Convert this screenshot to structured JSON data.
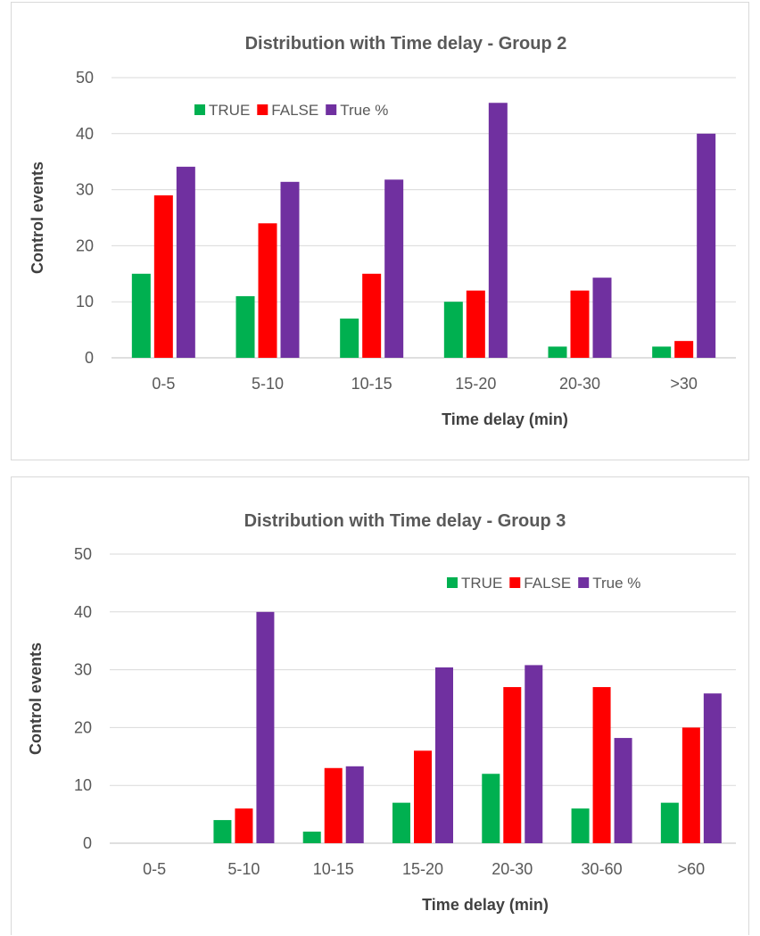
{
  "chart_data": [
    {
      "type": "bar",
      "title": "Distribution with Time delay - Group 2",
      "xlabel": "Time delay (min)",
      "ylabel": "Control events",
      "ylim": [
        0,
        50
      ],
      "yticks": [
        0,
        10,
        20,
        30,
        40,
        50
      ],
      "grid": true,
      "legend_position": "top-left",
      "categories": [
        "0-5",
        "5-10",
        "10-15",
        "15-20",
        "20-30",
        ">30"
      ],
      "series": [
        {
          "name": "TRUE",
          "color": "#00b050",
          "values": [
            15,
            11,
            7,
            10,
            2,
            2
          ]
        },
        {
          "name": "FALSE",
          "color": "#ff0000",
          "values": [
            29,
            24,
            15,
            12,
            12,
            3
          ]
        },
        {
          "name": "True %",
          "color": "#7030a0",
          "values": [
            34.1,
            31.4,
            31.8,
            45.5,
            14.3,
            40.0
          ]
        }
      ]
    },
    {
      "type": "bar",
      "title": "Distribution with Time delay - Group 3",
      "xlabel": "Time delay (min)",
      "ylabel": "Control events",
      "ylim": [
        0,
        50
      ],
      "yticks": [
        0,
        10,
        20,
        30,
        40,
        50
      ],
      "grid": true,
      "legend_position": "top-right",
      "categories": [
        "0-5",
        "5-10",
        "10-15",
        "15-20",
        "20-30",
        "30-60",
        ">60"
      ],
      "series": [
        {
          "name": "TRUE",
          "color": "#00b050",
          "values": [
            0,
            4,
            2,
            7,
            12,
            6,
            7
          ]
        },
        {
          "name": "FALSE",
          "color": "#ff0000",
          "values": [
            0,
            6,
            13,
            16,
            27,
            27,
            20
          ]
        },
        {
          "name": "True %",
          "color": "#7030a0",
          "values": [
            0,
            40.0,
            13.3,
            30.4,
            30.8,
            18.2,
            25.9
          ]
        }
      ]
    }
  ]
}
